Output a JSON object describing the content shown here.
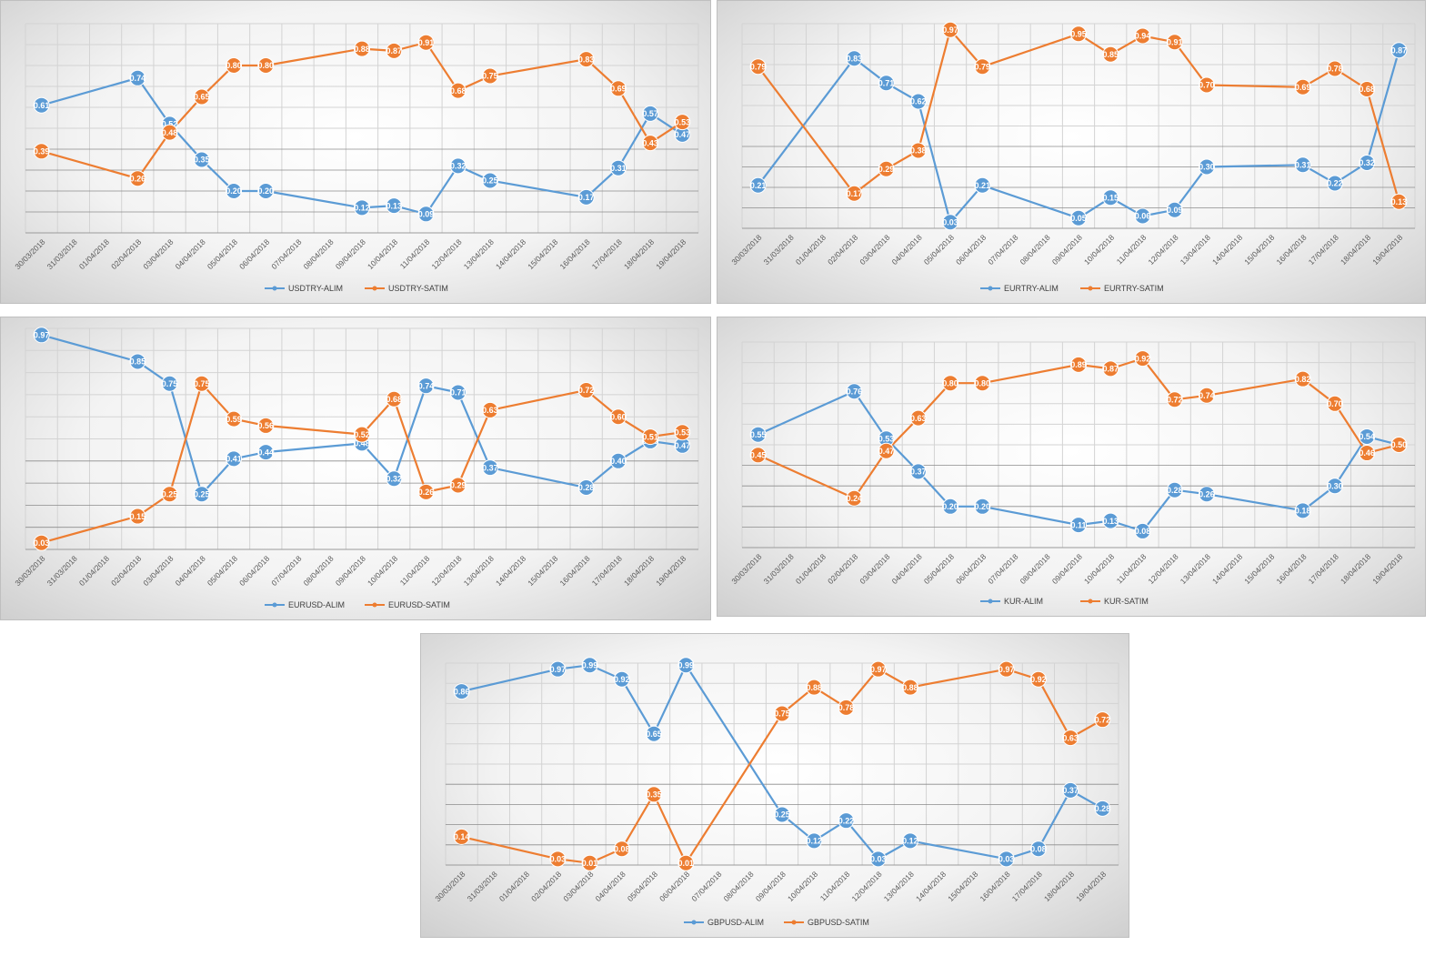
{
  "colors": {
    "alim": "#5b9bd5",
    "satim": "#ed7d31"
  },
  "chart_data": [
    {
      "type": "line",
      "title": "",
      "categories": [
        "30/03/2018",
        "31/03/2018",
        "01/04/2018",
        "02/04/2018",
        "03/04/2018",
        "04/04/2018",
        "05/04/2018",
        "06/04/2018",
        "07/04/2018",
        "08/04/2018",
        "09/04/2018",
        "10/04/2018",
        "11/04/2018",
        "12/04/2018",
        "13/04/2018",
        "14/04/2018",
        "15/04/2018",
        "16/04/2018",
        "17/04/2018",
        "18/04/2018",
        "19/04/2018"
      ],
      "ylim": [
        0,
        1
      ],
      "grid": true,
      "legend": "bottom",
      "series": [
        {
          "name": "USDTRY-ALIM",
          "color": "#5b9bd5",
          "values": [
            0.61,
            null,
            null,
            0.74,
            0.52,
            0.35,
            0.2,
            0.2,
            null,
            null,
            0.12,
            0.13,
            0.09,
            0.32,
            0.25,
            null,
            null,
            0.17,
            0.31,
            0.57,
            0.47
          ]
        },
        {
          "name": "USDTRY-SATIM",
          "color": "#ed7d31",
          "values": [
            0.39,
            null,
            null,
            0.26,
            0.48,
            0.65,
            0.8,
            0.8,
            null,
            null,
            0.88,
            0.87,
            0.91,
            0.68,
            0.75,
            null,
            null,
            0.83,
            0.69,
            0.43,
            0.53
          ]
        }
      ]
    },
    {
      "type": "line",
      "title": "",
      "categories": [
        "30/03/2018",
        "31/03/2018",
        "01/04/2018",
        "02/04/2018",
        "03/04/2018",
        "04/04/2018",
        "05/04/2018",
        "06/04/2018",
        "07/04/2018",
        "08/04/2018",
        "09/04/2018",
        "10/04/2018",
        "11/04/2018",
        "12/04/2018",
        "13/04/2018",
        "14/04/2018",
        "15/04/2018",
        "16/04/2018",
        "17/04/2018",
        "18/04/2018",
        "19/04/2018"
      ],
      "ylim": [
        0,
        1
      ],
      "grid": true,
      "legend": "bottom",
      "series": [
        {
          "name": "EURTRY-ALIM",
          "color": "#5b9bd5",
          "values": [
            0.21,
            null,
            null,
            0.83,
            0.71,
            0.62,
            0.03,
            0.21,
            null,
            null,
            0.05,
            0.15,
            0.06,
            0.09,
            0.3,
            null,
            null,
            0.31,
            0.22,
            0.32,
            0.87
          ]
        },
        {
          "name": "EURTRY-SATIM",
          "color": "#ed7d31",
          "values": [
            0.79,
            null,
            null,
            0.17,
            0.29,
            0.38,
            0.97,
            0.79,
            null,
            null,
            0.95,
            0.85,
            0.94,
            0.91,
            0.7,
            null,
            null,
            0.69,
            0.78,
            0.68,
            0.13
          ]
        }
      ]
    },
    {
      "type": "line",
      "title": "",
      "categories": [
        "30/03/2018",
        "31/03/2018",
        "01/04/2018",
        "02/04/2018",
        "03/04/2018",
        "04/04/2018",
        "05/04/2018",
        "06/04/2018",
        "07/04/2018",
        "08/04/2018",
        "09/04/2018",
        "10/04/2018",
        "11/04/2018",
        "12/04/2018",
        "13/04/2018",
        "14/04/2018",
        "15/04/2018",
        "16/04/2018",
        "17/04/2018",
        "18/04/2018",
        "19/04/2018"
      ],
      "ylim": [
        0,
        1
      ],
      "grid": true,
      "legend": "bottom",
      "series": [
        {
          "name": "EURUSD-ALIM",
          "color": "#5b9bd5",
          "values": [
            0.97,
            null,
            null,
            0.85,
            0.75,
            0.25,
            0.41,
            0.44,
            null,
            null,
            0.48,
            0.32,
            0.74,
            0.71,
            0.37,
            null,
            null,
            0.28,
            0.4,
            0.49,
            0.47
          ]
        },
        {
          "name": "EURUSD-SATIM",
          "color": "#ed7d31",
          "values": [
            0.03,
            null,
            null,
            0.15,
            0.25,
            0.75,
            0.59,
            0.56,
            null,
            null,
            0.52,
            0.68,
            0.26,
            0.29,
            0.63,
            null,
            null,
            0.72,
            0.6,
            0.51,
            0.53
          ]
        }
      ]
    },
    {
      "type": "line",
      "title": "",
      "categories": [
        "30/03/2018",
        "31/03/2018",
        "01/04/2018",
        "02/04/2018",
        "03/04/2018",
        "04/04/2018",
        "05/04/2018",
        "06/04/2018",
        "07/04/2018",
        "08/04/2018",
        "09/04/2018",
        "10/04/2018",
        "11/04/2018",
        "12/04/2018",
        "13/04/2018",
        "14/04/2018",
        "15/04/2018",
        "16/04/2018",
        "17/04/2018",
        "18/04/2018",
        "19/04/2018"
      ],
      "ylim": [
        0,
        1
      ],
      "grid": true,
      "legend": "bottom",
      "series": [
        {
          "name": "KUR-ALIM",
          "color": "#5b9bd5",
          "values": [
            0.55,
            null,
            null,
            0.76,
            0.53,
            0.37,
            0.2,
            0.2,
            null,
            null,
            0.11,
            0.13,
            0.08,
            0.28,
            0.26,
            null,
            null,
            0.18,
            0.3,
            0.54,
            0.5
          ]
        },
        {
          "name": "KUR-SATIM",
          "color": "#ed7d31",
          "values": [
            0.45,
            null,
            null,
            0.24,
            0.47,
            0.63,
            0.8,
            0.8,
            null,
            null,
            0.89,
            0.87,
            0.92,
            0.72,
            0.74,
            null,
            null,
            0.82,
            0.7,
            0.46,
            0.5
          ]
        }
      ]
    },
    {
      "type": "line",
      "title": "",
      "categories": [
        "30/03/2018",
        "31/03/2018",
        "01/04/2018",
        "02/04/2018",
        "03/04/2018",
        "04/04/2018",
        "05/04/2018",
        "06/04/2018",
        "07/04/2018",
        "08/04/2018",
        "09/04/2018",
        "10/04/2018",
        "11/04/2018",
        "12/04/2018",
        "13/04/2018",
        "14/04/2018",
        "15/04/2018",
        "16/04/2018",
        "17/04/2018",
        "18/04/2018",
        "19/04/2018"
      ],
      "ylim": [
        0,
        1
      ],
      "grid": true,
      "legend": "bottom",
      "series": [
        {
          "name": "GBPUSD-ALIM",
          "color": "#5b9bd5",
          "values": [
            0.86,
            null,
            null,
            0.97,
            0.99,
            0.92,
            0.65,
            0.99,
            null,
            null,
            0.25,
            0.12,
            0.22,
            0.03,
            0.12,
            null,
            null,
            0.03,
            0.08,
            0.37,
            0.28
          ]
        },
        {
          "name": "GBPUSD-SATIM",
          "color": "#ed7d31",
          "values": [
            0.14,
            null,
            null,
            0.03,
            0.01,
            0.08,
            0.35,
            0.01,
            null,
            null,
            0.75,
            0.88,
            0.78,
            0.97,
            0.88,
            null,
            null,
            0.97,
            0.92,
            0.63,
            0.72
          ]
        }
      ]
    }
  ]
}
